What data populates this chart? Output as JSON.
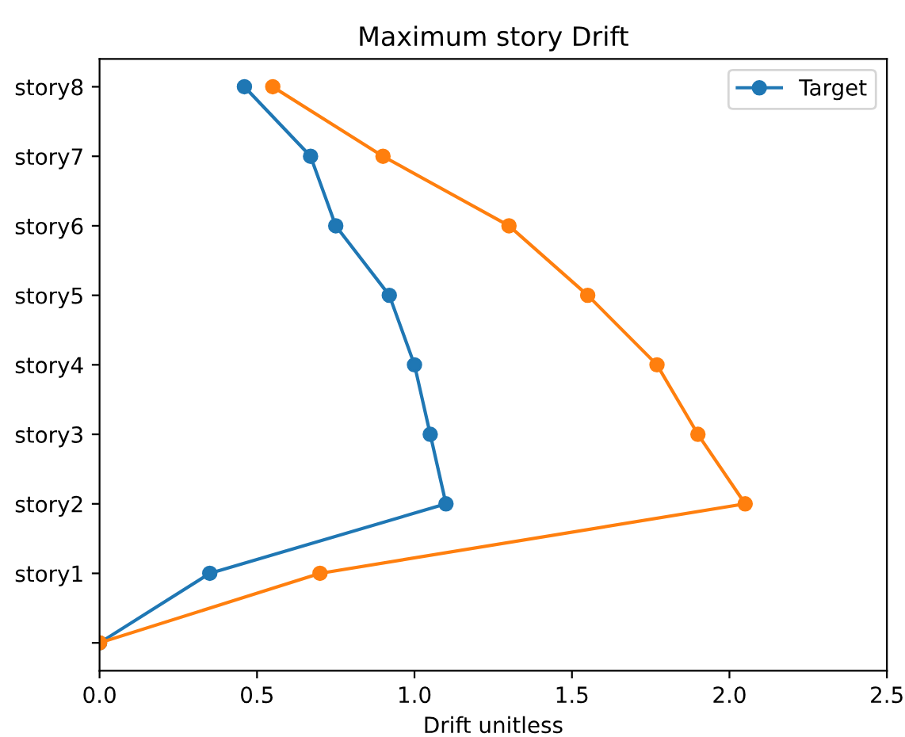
{
  "chart_data": {
    "type": "line",
    "orientation": "horizontal",
    "title": "Maximum story Drift",
    "xlabel": "Drift unitless",
    "categories": [
      "story8",
      "story7",
      "story6",
      "story5",
      "story4",
      "story3",
      "story2",
      "story1",
      null
    ],
    "series": [
      {
        "name": "Target",
        "color": "#1f77b4",
        "values": [
          0.46,
          0.67,
          0.75,
          0.92,
          1.0,
          1.05,
          1.1,
          0.35,
          0.0
        ]
      },
      {
        "color": "#ff7f0e",
        "values": [
          0.55,
          0.9,
          1.3,
          1.55,
          1.77,
          1.9,
          2.05,
          0.7,
          0.0
        ]
      }
    ],
    "xlim": [
      0,
      2.5
    ],
    "xticks": [
      {
        "value": 0,
        "label": "0.0"
      },
      0.5,
      {
        "value": 1,
        "label": "1.0"
      },
      1.5,
      {
        "value": 2,
        "label": "2.0"
      },
      2.5
    ],
    "marker": "circle",
    "legend": "top right"
  }
}
